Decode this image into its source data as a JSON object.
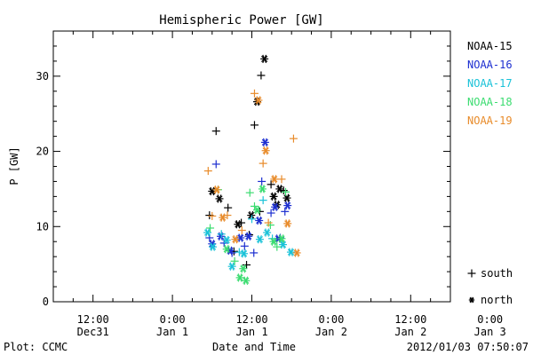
{
  "chart_data": {
    "type": "scatter",
    "title": "Hemispheric Power [GW]",
    "ylabel": "P [GW]",
    "xlabel": "Date and Time",
    "ylim": [
      0,
      36
    ],
    "yticks": [
      0,
      10,
      20,
      30
    ],
    "xlim_hours": [
      -6,
      54
    ],
    "x_ticks": [
      {
        "h": 0,
        "time": "12:00",
        "date": "Dec31"
      },
      {
        "h": 12,
        "time": "0:00",
        "date": "Jan 1"
      },
      {
        "h": 24,
        "time": "12:00",
        "date": "Jan 1"
      },
      {
        "h": 36,
        "time": "0:00",
        "date": "Jan 2"
      },
      {
        "h": 48,
        "time": "12:00",
        "date": "Jan 2"
      },
      {
        "h": 60,
        "time": "0:00",
        "date": "Jan 3"
      }
    ],
    "footer_left": "Plot: CCMC",
    "footer_right": "2012/01/03 07:50:07",
    "symbol_legend": [
      {
        "symbol": "+",
        "label": "south"
      },
      {
        "symbol": "*",
        "label": "north"
      }
    ],
    "series": [
      {
        "name": "NOAA-15",
        "color": "#000000",
        "points": [
          {
            "h": 17.6,
            "v": 11.5,
            "m": "+"
          },
          {
            "h": 18.0,
            "v": 14.7,
            "m": "*"
          },
          {
            "h": 18.6,
            "v": 22.7,
            "m": "+"
          },
          {
            "h": 19.1,
            "v": 13.7,
            "m": "*"
          },
          {
            "h": 20.4,
            "v": 12.5,
            "m": "+"
          },
          {
            "h": 21.3,
            "v": 6.7,
            "m": "+"
          },
          {
            "h": 22.4,
            "v": 10.5,
            "m": "+"
          },
          {
            "h": 23.2,
            "v": 4.9,
            "m": "+"
          },
          {
            "h": 23.6,
            "v": 8.9,
            "m": "+"
          },
          {
            "h": 23.9,
            "v": 11.5,
            "m": "*"
          },
          {
            "h": 24.4,
            "v": 23.5,
            "m": "+"
          },
          {
            "h": 24.8,
            "v": 26.6,
            "m": "*"
          },
          {
            "h": 25.2,
            "v": 12.0,
            "m": "+"
          },
          {
            "h": 25.4,
            "v": 30.1,
            "m": "+"
          },
          {
            "h": 25.9,
            "v": 32.3,
            "m": "*"
          },
          {
            "h": 26.9,
            "v": 15.6,
            "m": "+"
          },
          {
            "h": 27.3,
            "v": 14.0,
            "m": "*"
          },
          {
            "h": 27.8,
            "v": 12.9,
            "m": "*"
          },
          {
            "h": 28.2,
            "v": 15.0,
            "m": "*"
          },
          {
            "h": 28.8,
            "v": 14.8,
            "m": "+"
          },
          {
            "h": 29.3,
            "v": 13.8,
            "m": "*"
          },
          {
            "h": 21.9,
            "v": 10.3,
            "m": "*"
          }
        ]
      },
      {
        "name": "NOAA-16",
        "color": "#1c2ed0",
        "points": [
          {
            "h": 17.6,
            "v": 8.5,
            "m": "+"
          },
          {
            "h": 18.0,
            "v": 7.7,
            "m": "*"
          },
          {
            "h": 18.6,
            "v": 18.3,
            "m": "+"
          },
          {
            "h": 19.3,
            "v": 8.7,
            "m": "*"
          },
          {
            "h": 19.8,
            "v": 7.8,
            "m": "+"
          },
          {
            "h": 20.7,
            "v": 6.8,
            "m": "*"
          },
          {
            "h": 21.0,
            "v": 6.5,
            "m": "+"
          },
          {
            "h": 22.3,
            "v": 8.5,
            "m": "*"
          },
          {
            "h": 22.9,
            "v": 7.4,
            "m": "+"
          },
          {
            "h": 23.5,
            "v": 8.7,
            "m": "*"
          },
          {
            "h": 24.3,
            "v": 6.5,
            "m": "+"
          },
          {
            "h": 25.1,
            "v": 10.8,
            "m": "*"
          },
          {
            "h": 25.5,
            "v": 16.0,
            "m": "+"
          },
          {
            "h": 26.0,
            "v": 21.2,
            "m": "*"
          },
          {
            "h": 26.9,
            "v": 11.8,
            "m": "+"
          },
          {
            "h": 27.5,
            "v": 12.6,
            "m": "*"
          },
          {
            "h": 28.0,
            "v": 8.4,
            "m": "*"
          },
          {
            "h": 28.3,
            "v": 8.5,
            "m": "+"
          },
          {
            "h": 29.0,
            "v": 12.0,
            "m": "+"
          },
          {
            "h": 29.4,
            "v": 12.8,
            "m": "*"
          }
        ]
      },
      {
        "name": "NOAA-17",
        "color": "#19c2d8",
        "points": [
          {
            "h": 17.3,
            "v": 9.2,
            "m": "*"
          },
          {
            "h": 18.1,
            "v": 7.3,
            "m": "*"
          },
          {
            "h": 19.4,
            "v": 9.0,
            "m": "+"
          },
          {
            "h": 20.2,
            "v": 8.2,
            "m": "*"
          },
          {
            "h": 21.0,
            "v": 4.7,
            "m": "*"
          },
          {
            "h": 22.1,
            "v": 6.6,
            "m": "+"
          },
          {
            "h": 22.8,
            "v": 6.4,
            "m": "*"
          },
          {
            "h": 24.0,
            "v": 11.0,
            "m": "+"
          },
          {
            "h": 25.2,
            "v": 8.3,
            "m": "*"
          },
          {
            "h": 25.7,
            "v": 13.5,
            "m": "+"
          },
          {
            "h": 26.3,
            "v": 9.2,
            "m": "*"
          },
          {
            "h": 27.1,
            "v": 8.4,
            "m": "+"
          },
          {
            "h": 28.7,
            "v": 7.6,
            "m": "*"
          },
          {
            "h": 29.9,
            "v": 6.6,
            "m": "*"
          }
        ]
      },
      {
        "name": "NOAA-18",
        "color": "#3bdc70",
        "points": [
          {
            "h": 17.7,
            "v": 9.8,
            "m": "+"
          },
          {
            "h": 18.9,
            "v": 14.9,
            "m": "+"
          },
          {
            "h": 20.2,
            "v": 7.0,
            "m": "*"
          },
          {
            "h": 21.4,
            "v": 5.4,
            "m": "+"
          },
          {
            "h": 22.2,
            "v": 3.2,
            "m": "*"
          },
          {
            "h": 22.7,
            "v": 4.4,
            "m": "*"
          },
          {
            "h": 23.1,
            "v": 2.8,
            "m": "*"
          },
          {
            "h": 23.7,
            "v": 14.5,
            "m": "+"
          },
          {
            "h": 24.4,
            "v": 12.7,
            "m": "+"
          },
          {
            "h": 24.8,
            "v": 12.2,
            "m": "*"
          },
          {
            "h": 25.6,
            "v": 15.0,
            "m": "*"
          },
          {
            "h": 26.8,
            "v": 10.2,
            "m": "+"
          },
          {
            "h": 27.3,
            "v": 8.0,
            "m": "*"
          },
          {
            "h": 27.8,
            "v": 7.3,
            "m": "+"
          },
          {
            "h": 28.5,
            "v": 8.4,
            "m": "*"
          },
          {
            "h": 29.1,
            "v": 14.6,
            "m": "+"
          }
        ]
      },
      {
        "name": "NOAA-19",
        "color": "#e88b2a",
        "points": [
          {
            "h": 17.4,
            "v": 17.4,
            "m": "+"
          },
          {
            "h": 18.0,
            "v": 11.4,
            "m": "+"
          },
          {
            "h": 18.7,
            "v": 14.9,
            "m": "*"
          },
          {
            "h": 19.6,
            "v": 11.2,
            "m": "*"
          },
          {
            "h": 20.3,
            "v": 11.5,
            "m": "+"
          },
          {
            "h": 21.5,
            "v": 8.3,
            "m": "*"
          },
          {
            "h": 22.5,
            "v": 9.5,
            "m": "+"
          },
          {
            "h": 24.4,
            "v": 27.7,
            "m": "+"
          },
          {
            "h": 25.0,
            "v": 26.8,
            "m": "*"
          },
          {
            "h": 25.7,
            "v": 18.4,
            "m": "+"
          },
          {
            "h": 26.1,
            "v": 20.1,
            "m": "*"
          },
          {
            "h": 26.5,
            "v": 10.5,
            "m": "+"
          },
          {
            "h": 27.4,
            "v": 16.3,
            "m": "*"
          },
          {
            "h": 28.5,
            "v": 16.3,
            "m": "+"
          },
          {
            "h": 29.4,
            "v": 10.4,
            "m": "*"
          },
          {
            "h": 30.3,
            "v": 21.7,
            "m": "+"
          },
          {
            "h": 30.8,
            "v": 6.5,
            "m": "*"
          }
        ]
      }
    ]
  }
}
